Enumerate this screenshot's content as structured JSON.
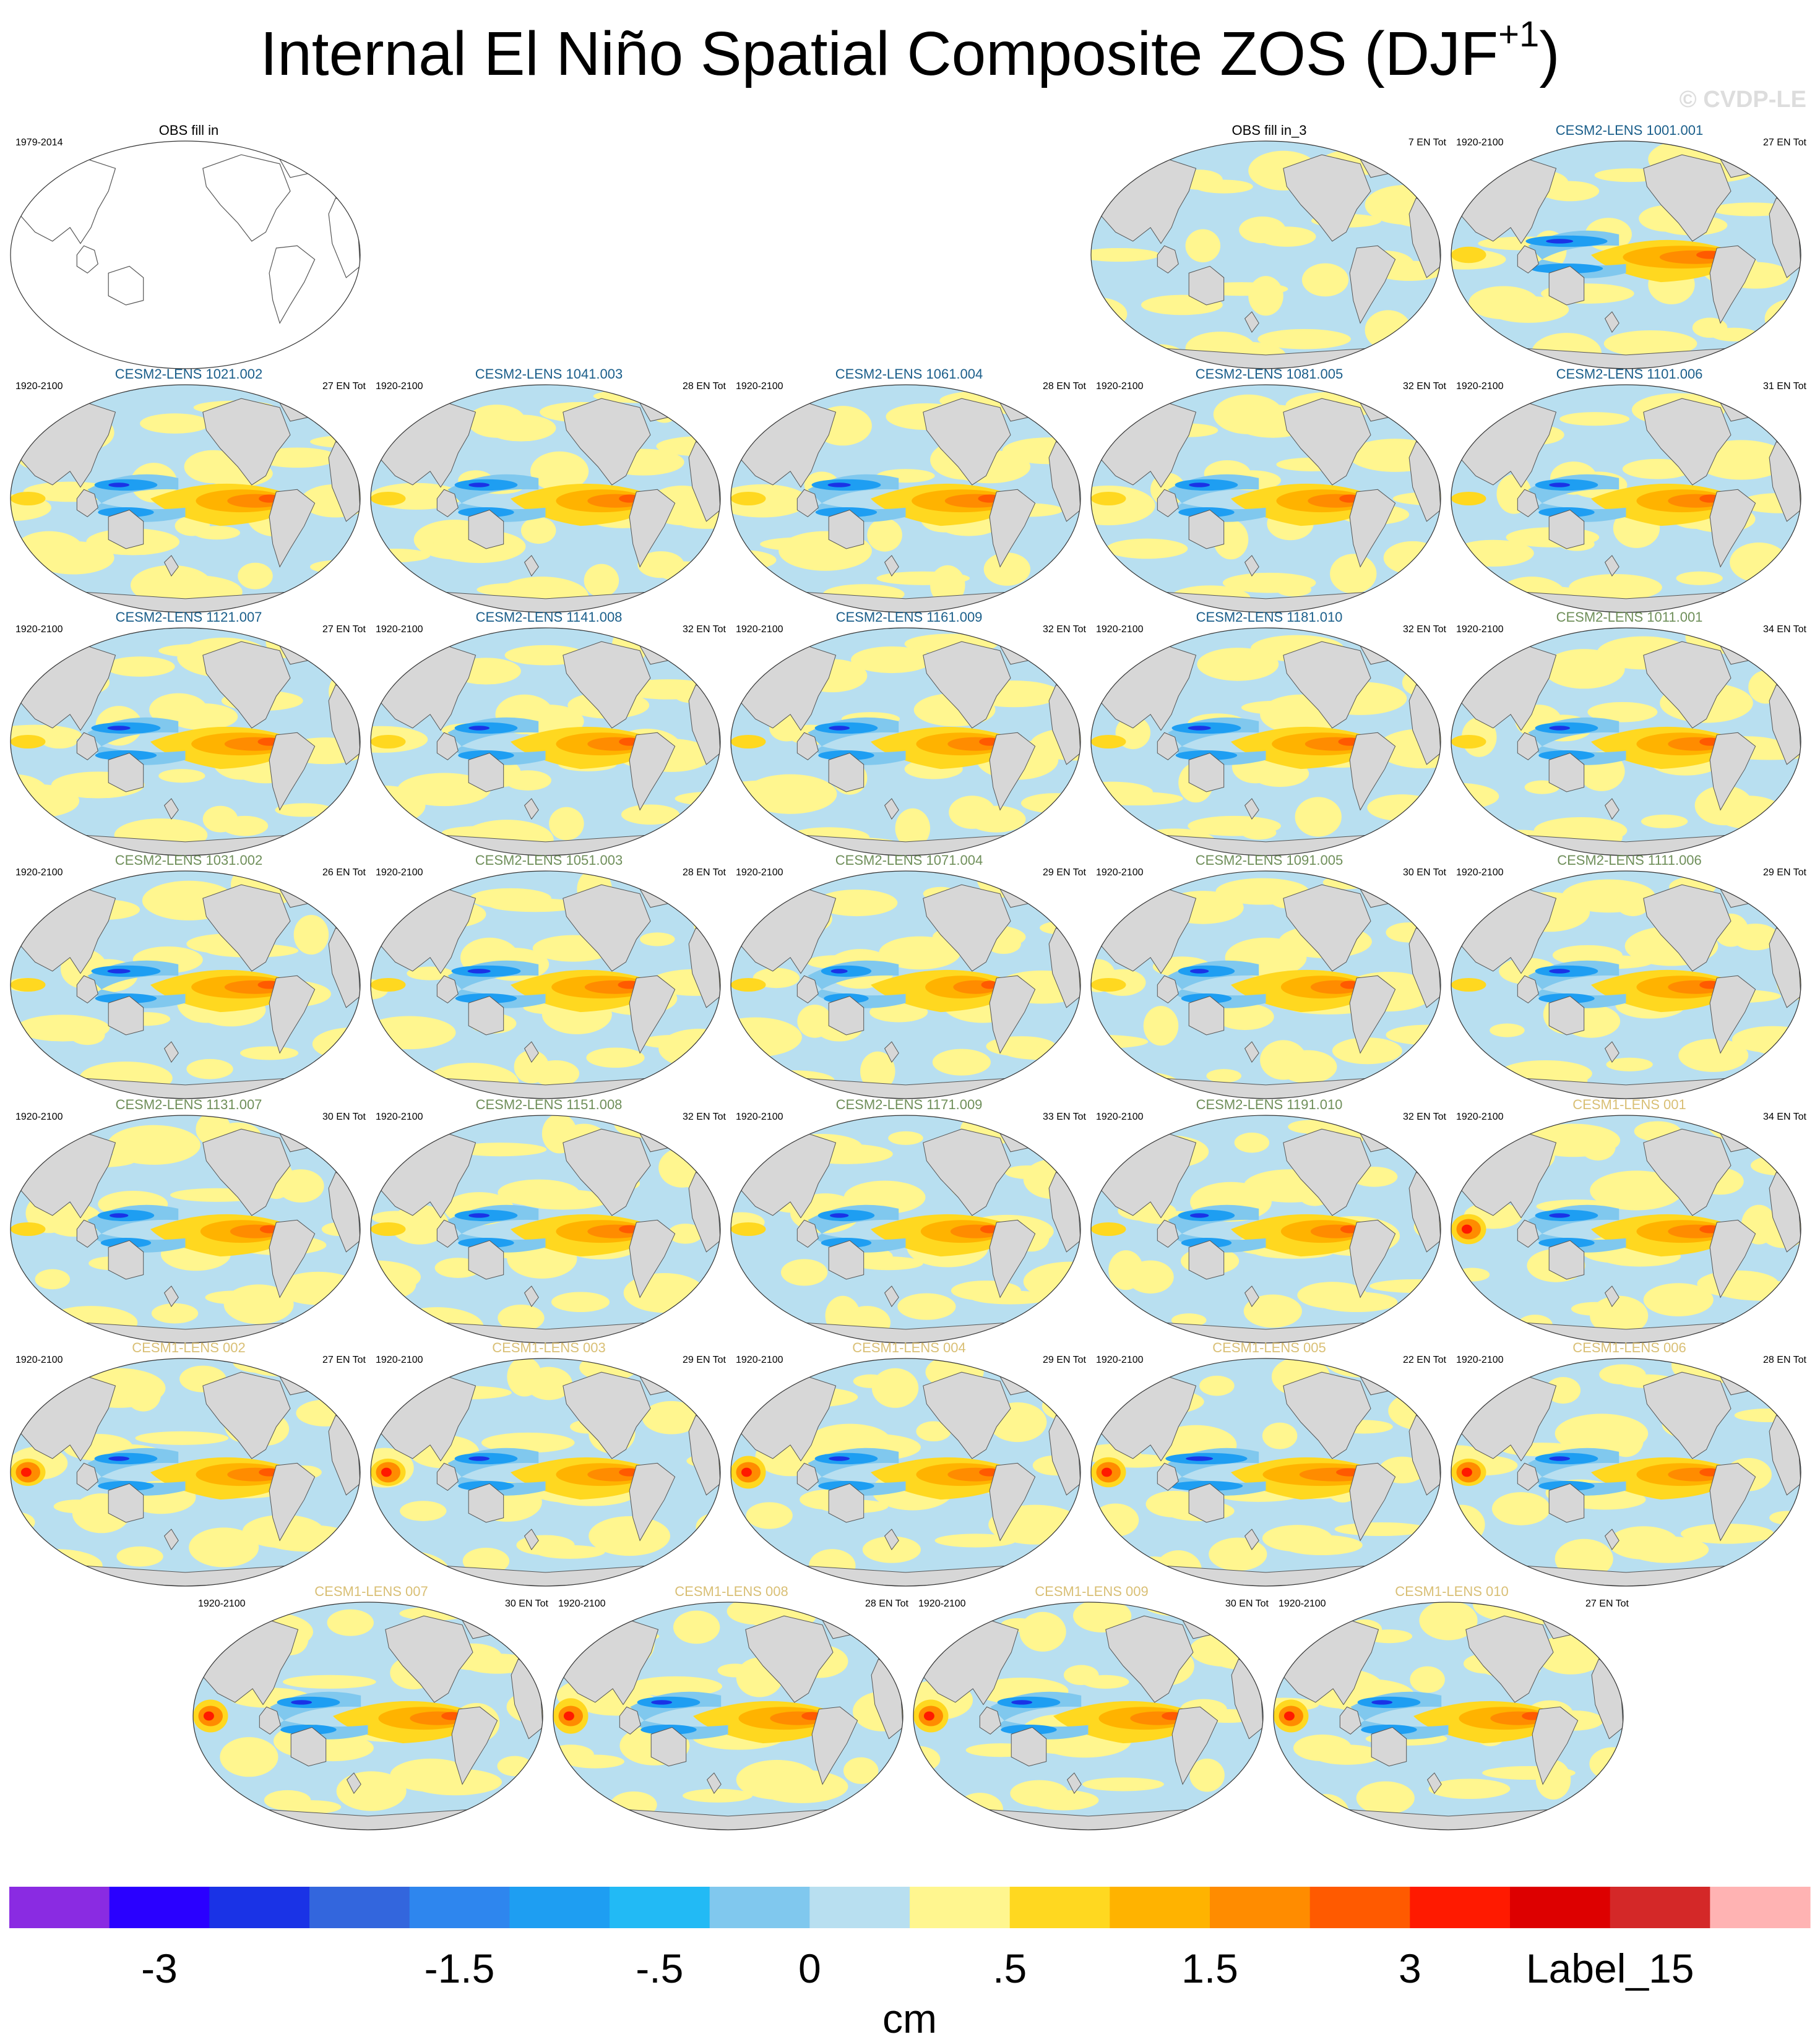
{
  "title": "Internal El Niño Spatial Composite ZOS (DJF",
  "title_sup": "+1",
  "watermark": "© CVDP-LE",
  "colors": {
    "ocean_light_blue": "#b8dff0",
    "ocean_light_yellow": "#fff68f",
    "land": "#d7d7d7",
    "coast": "#555555",
    "cesm2_title_blue": "#1a5e8a",
    "cesm2_title_green": "#6f8f5a",
    "cesm1_title": "#d9bf75",
    "obs_title": "#000000"
  },
  "chart_data": {
    "type": "map-panels",
    "unit": "cm",
    "colorbar": {
      "colors": [
        "#8a2be2",
        "#2a00ff",
        "#1a33e6",
        "#3366dd",
        "#2e86ee",
        "#1e9ef2",
        "#22baf5",
        "#80c8ee",
        "#b8dff0",
        "#fff68f",
        "#ffd820",
        "#ffb300",
        "#ff8c00",
        "#ff5a00",
        "#ff1a00",
        "#dd0000",
        "#d42828",
        "#ffb3b3"
      ],
      "labels": [
        "-3",
        "-1.5",
        "-.5",
        "0",
        ".5",
        "1.5",
        "3",
        "Label_15"
      ],
      "label_positions": [
        1.5,
        4.5,
        6.5,
        8.0,
        10.0,
        12.0,
        14.0,
        16.0
      ]
    },
    "panels": [
      {
        "title": "OBS fill in",
        "left": "1979-2014",
        "right": "",
        "style": "obs",
        "blank": true,
        "strength": 0,
        "west": 0
      },
      {
        "title": "OBS fill in_3",
        "left": "",
        "right": "7 EN Tot",
        "style": "obs",
        "blank": false,
        "strength": 0.1,
        "west": 0
      },
      {
        "title": "CESM2-LENS 1001.001",
        "left": "1920-2100",
        "right": "27 EN Tot",
        "style": "cesm2a",
        "blank": false,
        "strength": 1.3,
        "west": 0.6
      },
      {
        "title": "CESM2-LENS 1021.002",
        "left": "1920-2100",
        "right": "27 EN Tot",
        "style": "cesm2a",
        "blank": false,
        "strength": 1.0,
        "west": 0.3
      },
      {
        "title": "CESM2-LENS 1041.003",
        "left": "1920-2100",
        "right": "28 EN Tot",
        "style": "cesm2a",
        "blank": false,
        "strength": 1.0,
        "west": 0.2
      },
      {
        "title": "CESM2-LENS 1061.004",
        "left": "1920-2100",
        "right": "28 EN Tot",
        "style": "cesm2a",
        "blank": false,
        "strength": 1.1,
        "west": 0.2
      },
      {
        "title": "CESM2-LENS 1081.005",
        "left": "1920-2100",
        "right": "32 EN Tot",
        "style": "cesm2a",
        "blank": false,
        "strength": 1.0,
        "west": 0.2
      },
      {
        "title": "CESM2-LENS 1101.006",
        "left": "1920-2100",
        "right": "31 EN Tot",
        "style": "cesm2a",
        "blank": false,
        "strength": 1.0,
        "west": 0.3
      },
      {
        "title": "CESM2-LENS 1121.007",
        "left": "1920-2100",
        "right": "27 EN Tot",
        "style": "cesm2a",
        "blank": false,
        "strength": 1.1,
        "west": 0.2
      },
      {
        "title": "CESM2-LENS 1141.008",
        "left": "1920-2100",
        "right": "32 EN Tot",
        "style": "cesm2a",
        "blank": false,
        "strength": 1.0,
        "west": 0.2
      },
      {
        "title": "CESM2-LENS 1161.009",
        "left": "1920-2100",
        "right": "32 EN Tot",
        "style": "cesm2a",
        "blank": false,
        "strength": 1.0,
        "west": 0.2
      },
      {
        "title": "CESM2-LENS 1181.010",
        "left": "1920-2100",
        "right": "32 EN Tot",
        "style": "cesm2a",
        "blank": false,
        "strength": 1.1,
        "west": 0.2
      },
      {
        "title": "CESM2-LENS 1011.001",
        "left": "1920-2100",
        "right": "34 EN Tot",
        "style": "cesm2b",
        "blank": false,
        "strength": 1.0,
        "west": 0.3
      },
      {
        "title": "CESM2-LENS 1031.002",
        "left": "1920-2100",
        "right": "26 EN Tot",
        "style": "cesm2b",
        "blank": false,
        "strength": 1.1,
        "west": 0.3
      },
      {
        "title": "CESM2-LENS 1051.003",
        "left": "1920-2100",
        "right": "28 EN Tot",
        "style": "cesm2b",
        "blank": false,
        "strength": 1.1,
        "west": 0.2
      },
      {
        "title": "CESM2-LENS 1071.004",
        "left": "1920-2100",
        "right": "29 EN Tot",
        "style": "cesm2b",
        "blank": false,
        "strength": 0.8,
        "west": 0.2
      },
      {
        "title": "CESM2-LENS 1091.005",
        "left": "1920-2100",
        "right": "30 EN Tot",
        "style": "cesm2b",
        "blank": false,
        "strength": 0.9,
        "west": 0.2
      },
      {
        "title": "CESM2-LENS 1111.006",
        "left": "1920-2100",
        "right": "29 EN Tot",
        "style": "cesm2b",
        "blank": false,
        "strength": 1.0,
        "west": 0.3
      },
      {
        "title": "CESM2-LENS 1131.007",
        "left": "1920-2100",
        "right": "30 EN Tot",
        "style": "cesm2b",
        "blank": false,
        "strength": 0.9,
        "west": 0.3
      },
      {
        "title": "CESM2-LENS 1151.008",
        "left": "1920-2100",
        "right": "32 EN Tot",
        "style": "cesm2b",
        "blank": false,
        "strength": 1.0,
        "west": 0.2
      },
      {
        "title": "CESM2-LENS 1171.009",
        "left": "1920-2100",
        "right": "33 EN Tot",
        "style": "cesm2b",
        "blank": false,
        "strength": 0.9,
        "west": 0.2
      },
      {
        "title": "CESM2-LENS 1191.010",
        "left": "1920-2100",
        "right": "32 EN Tot",
        "style": "cesm2b",
        "blank": false,
        "strength": 0.9,
        "west": 0.2
      },
      {
        "title": "CESM1-LENS 001",
        "left": "1920-2100",
        "right": "34 EN Tot",
        "style": "cesm1",
        "blank": false,
        "strength": 1.0,
        "west": 1.1
      },
      {
        "title": "CESM1-LENS 002",
        "left": "1920-2100",
        "right": "27 EN Tot",
        "style": "cesm1",
        "blank": false,
        "strength": 1.0,
        "west": 1.0
      },
      {
        "title": "CESM1-LENS 003",
        "left": "1920-2100",
        "right": "29 EN Tot",
        "style": "cesm1",
        "blank": false,
        "strength": 1.0,
        "west": 1.0
      },
      {
        "title": "CESM1-LENS 004",
        "left": "1920-2100",
        "right": "29 EN Tot",
        "style": "cesm1",
        "blank": false,
        "strength": 1.0,
        "west": 1.2
      },
      {
        "title": "CESM1-LENS 005",
        "left": "1920-2100",
        "right": "22 EN Tot",
        "style": "cesm1",
        "blank": false,
        "strength": 1.3,
        "west": 1.1
      },
      {
        "title": "CESM1-LENS 006",
        "left": "1920-2100",
        "right": "28 EN Tot",
        "style": "cesm1",
        "blank": false,
        "strength": 1.0,
        "west": 1.0
      },
      {
        "title": "CESM1-LENS 007",
        "left": "1920-2100",
        "right": "30 EN Tot",
        "style": "cesm1",
        "blank": false,
        "strength": 1.0,
        "west": 1.2
      },
      {
        "title": "CESM1-LENS 008",
        "left": "1920-2100",
        "right": "28 EN Tot",
        "style": "cesm1",
        "blank": false,
        "strength": 1.0,
        "west": 1.3
      },
      {
        "title": "CESM1-LENS 009",
        "left": "1920-2100",
        "right": "30 EN Tot",
        "style": "cesm1",
        "blank": false,
        "strength": 1.0,
        "west": 1.2
      },
      {
        "title": "CESM1-LENS 010",
        "left": "1920-2100",
        "right": "27 EN Tot",
        "style": "cesm1",
        "blank": false,
        "strength": 1.0,
        "west": 1.2
      }
    ]
  }
}
